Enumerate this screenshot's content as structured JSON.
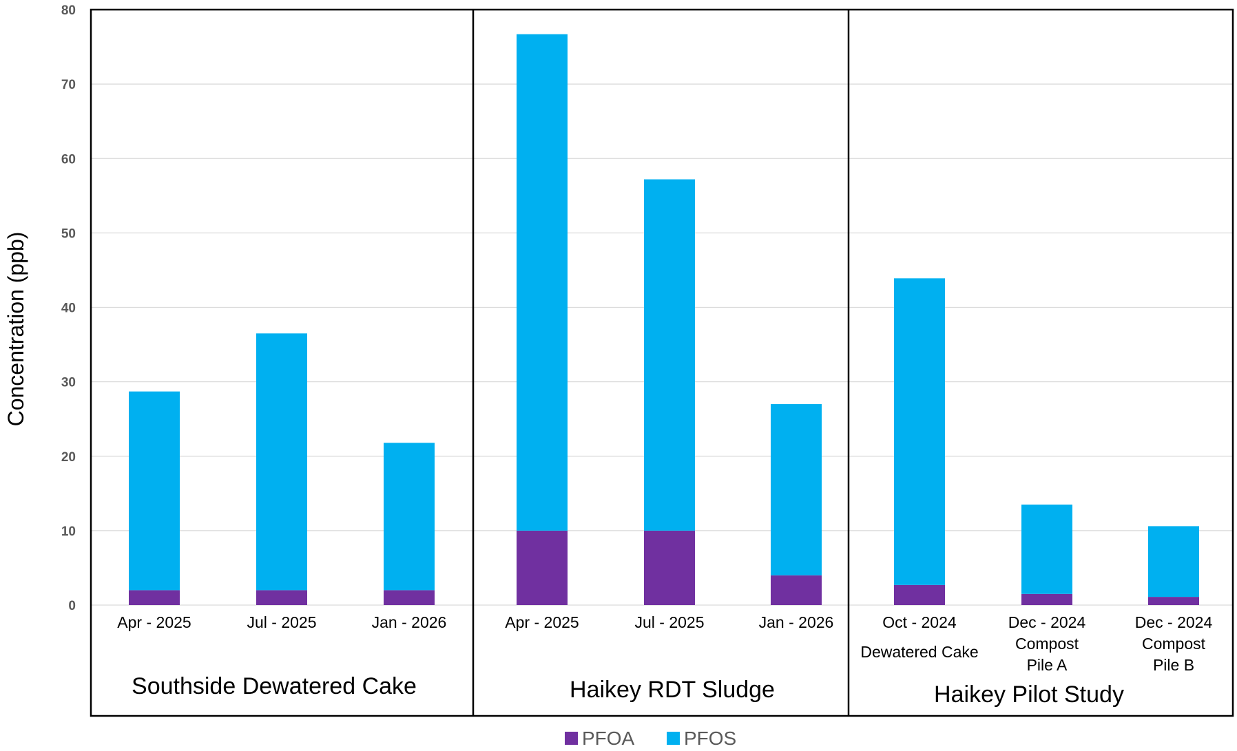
{
  "chart_data": {
    "type": "bar",
    "stacked": true,
    "ylabel": "Concentration (ppb)",
    "ylim": [
      0,
      80
    ],
    "yticks": [
      "0",
      "10",
      "20",
      "30",
      "40",
      "50",
      "60",
      "70",
      "80"
    ],
    "grid": true,
    "legend_position": "bottom",
    "groups": [
      {
        "label": "Southside Dewatered Cake",
        "categories": [
          [
            "Apr - 2025"
          ],
          [
            "Jul - 2025"
          ],
          [
            "Jan - 2026"
          ]
        ]
      },
      {
        "label": "Haikey RDT Sludge",
        "categories": [
          [
            "Apr - 2025"
          ],
          [
            "Jul - 2025"
          ],
          [
            "Jan - 2026"
          ]
        ]
      },
      {
        "label": "Haikey Pilot Study",
        "categories": [
          [
            "Oct - 2024",
            "Dewatered Cake"
          ],
          [
            "Dec - 2024",
            "Compost",
            "Pile A"
          ],
          [
            "Dec - 2024",
            "Compost",
            "Pile B"
          ]
        ]
      }
    ],
    "series": [
      {
        "name": "PFOA",
        "color": "#7030A0",
        "values": [
          2,
          2,
          2,
          10,
          10,
          4,
          2.7,
          1.5,
          1.1
        ]
      },
      {
        "name": "PFOS",
        "color": "#00B0F0",
        "values": [
          26.7,
          34.5,
          19.8,
          66.7,
          47.2,
          23,
          41.2,
          12,
          9.5
        ]
      }
    ]
  }
}
